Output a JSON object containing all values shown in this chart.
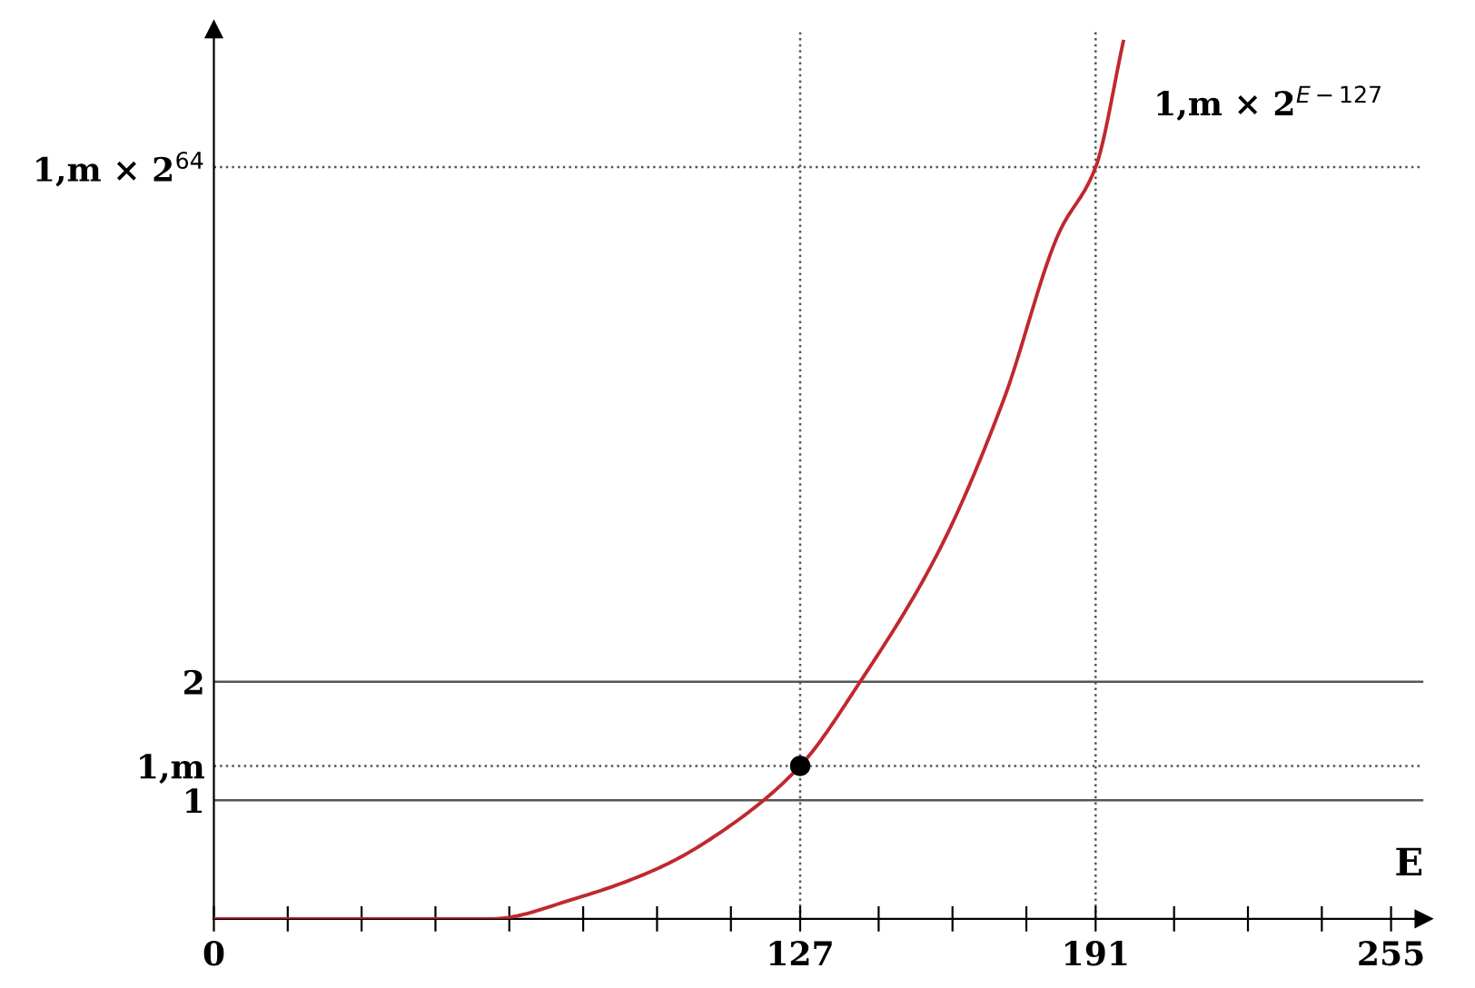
{
  "chart_data": {
    "type": "line",
    "xlabel": "E",
    "xlim": [
      0,
      262
    ],
    "ylim": [
      0,
      7.5
    ],
    "xticks": [
      {
        "value": 0,
        "label": "0"
      },
      {
        "value": 16,
        "label": null
      },
      {
        "value": 32,
        "label": null
      },
      {
        "value": 48,
        "label": null
      },
      {
        "value": 64,
        "label": null
      },
      {
        "value": 80,
        "label": null
      },
      {
        "value": 96,
        "label": null
      },
      {
        "value": 112,
        "label": null
      },
      127,
      {
        "value": 144,
        "label": null
      },
      {
        "value": 160,
        "label": null
      },
      {
        "value": 176,
        "label": null
      },
      191,
      {
        "value": 208,
        "label": null
      },
      {
        "value": 224,
        "label": null
      },
      {
        "value": 240,
        "label": null
      },
      255
    ],
    "yticks": [
      1,
      {
        "value": 1.29,
        "label": "1,m"
      },
      2,
      {
        "value": 6.34,
        "label": "1,m × 2$^{64}$"
      }
    ],
    "ref_lines": [
      {
        "axis": "y",
        "value": 1,
        "color": "#555555",
        "line_style": "solid"
      },
      {
        "axis": "y",
        "value": 2,
        "color": "#555555",
        "line_style": "solid"
      },
      {
        "axis": "y",
        "value": 1.29,
        "color": "#555555",
        "line_style": "dotted"
      },
      {
        "axis": "y",
        "value": 6.34,
        "color": "#555555",
        "line_style": "dotted"
      },
      {
        "axis": "x",
        "value": 127,
        "color": "#555555",
        "line_style": "dotted"
      },
      {
        "axis": "x",
        "value": 191,
        "color": "#555555",
        "line_style": "dotted"
      }
    ],
    "series": [
      {
        "name": "1,m × 2$^{E−127}$",
        "color": "#c0282f",
        "x": [
          0,
          20,
          40,
          60,
          79,
          97,
          112,
          127,
          140,
          157,
          171,
          183,
          191,
          197
        ],
        "values": [
          0,
          0,
          0,
          0,
          0.18,
          0.44,
          0.79,
          1.29,
          2.0,
          3.1,
          4.37,
          5.78,
          6.34,
          7.4
        ]
      },
      {
        "type": "scatter",
        "color": "#000000",
        "x": [
          127
        ],
        "values": [
          1.29
        ],
        "marker": "circle"
      }
    ],
    "grid": false,
    "legend": false
  }
}
